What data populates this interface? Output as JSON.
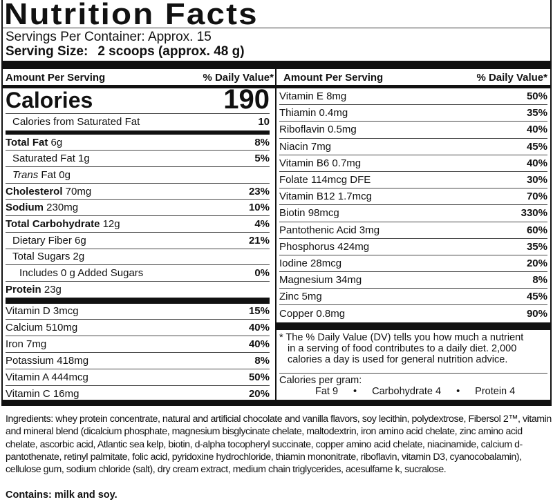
{
  "title": "Nutrition Facts",
  "servings_per_container": "Servings Per Container: Approx. 15",
  "serving_size": {
    "label": "Serving Size:",
    "value": "2 scoops (approx. 48 g)"
  },
  "left": {
    "header": {
      "amount": "Amount Per Serving",
      "dv": "% Daily Value*"
    },
    "calories": {
      "label": "Calories",
      "value": "190"
    },
    "cal_sat_fat": {
      "label": "Calories from Saturated Fat",
      "value": "10"
    },
    "nutrients": [
      {
        "bold": "Total Fat",
        "amount": " 6g",
        "dv": "8%",
        "indent": 0
      },
      {
        "bold": "",
        "amount": "Saturated Fat 1g",
        "dv": "5%",
        "indent": 1
      },
      {
        "italic": "Trans",
        "amount": " Fat 0g",
        "dv": "",
        "indent": 1
      },
      {
        "bold": "Cholesterol",
        "amount": " 70mg",
        "dv": "23%",
        "indent": 0
      },
      {
        "bold": "Sodium",
        "amount": " 230mg",
        "dv": "10%",
        "indent": 0
      },
      {
        "bold": "Total Carbohydrate",
        "amount": " 12g",
        "dv": "4%",
        "indent": 0
      },
      {
        "bold": "",
        "amount": "Dietary Fiber 6g",
        "dv": "21%",
        "indent": 1
      },
      {
        "bold": "",
        "amount": "Total Sugars 2g",
        "dv": "",
        "indent": 1
      },
      {
        "bold": "",
        "amount": "Includes 0 g Added Sugars",
        "dv": "0%",
        "indent": 2
      },
      {
        "bold": "Protein",
        "amount": " 23g",
        "dv": "",
        "indent": 0
      }
    ],
    "vitamins": [
      {
        "name": "Vitamin D 3mcg",
        "dv": "15%"
      },
      {
        "name": "Calcium 510mg",
        "dv": "40%"
      },
      {
        "name": "Iron 7mg",
        "dv": "40%"
      },
      {
        "name": "Potassium 418mg",
        "dv": "8%"
      },
      {
        "name": "Vitamin A  444mcg",
        "dv": "50%"
      },
      {
        "name": "Vitamin C 16mg",
        "dv": "20%"
      }
    ]
  },
  "right": {
    "header": {
      "amount": "Amount Per Serving",
      "dv": "% Daily Value*"
    },
    "vitamins": [
      {
        "name": "Vitamin E  8mg",
        "dv": "50%"
      },
      {
        "name": "Thiamin 0.4mg",
        "dv": "35%"
      },
      {
        "name": "Riboflavin 0.5mg",
        "dv": "40%"
      },
      {
        "name": "Niacin 7mg",
        "dv": "45%"
      },
      {
        "name": "Vitamin B6 0.7mg",
        "dv": "40%"
      },
      {
        "name": "Folate 114mcg DFE",
        "dv": "30%"
      },
      {
        "name": "Vitamin B12 1.7mcg",
        "dv": "70%"
      },
      {
        "name": "Biotin 98mcg",
        "dv": "330%"
      },
      {
        "name": "Pantothenic Acid 3mg",
        "dv": "60%"
      },
      {
        "name": "Phosphorus 424mg",
        "dv": "35%"
      },
      {
        "name": "Iodine 28mcg",
        "dv": "20%"
      },
      {
        "name": "Magnesium 34mg",
        "dv": "8%"
      },
      {
        "name": "Zinc 5mg",
        "dv": "45%"
      },
      {
        "name": "Copper 0.8mg",
        "dv": "90%"
      }
    ],
    "footnote": {
      "star": "* The % Daily Value (DV) tells you how much a nutrient",
      "rest": "in a serving of food contributes to a daily diet. 2,000 calories a day is used for general nutrition advice."
    },
    "calories_per_gram": {
      "label": "Calories per gram:",
      "fat": "Fat 9",
      "carb": "Carbohydrate 4",
      "protein": "Protein 4",
      "sep": "•"
    }
  },
  "ingredients": "Ingredients: whey protein concentrate, natural and artificial chocolate and vanilla flavors, soy lecithin, polydextrose, Fibersol 2™, vitamin and mineral blend (dicalcium phosphate, magnesium bisglycinate chelate, maltodextrin, iron amino acid chelate, zinc amino acid chelate, ascorbic acid, Atlantic sea kelp, biotin, d-alpha tocopheryl succinate, copper amino acid chelate, niacinamide, calcium d-pantothenate, retinyl palmitate, folic acid, pyridoxine hydrochloride, thiamin mononitrate, riboflavin, vitamin D3, cyanocobalamin), cellulose gum, sodium chloride (salt), dry cream extract, medium chain triglycerides, acesulfame k, sucralose.",
  "contains": "Contains: milk and soy."
}
